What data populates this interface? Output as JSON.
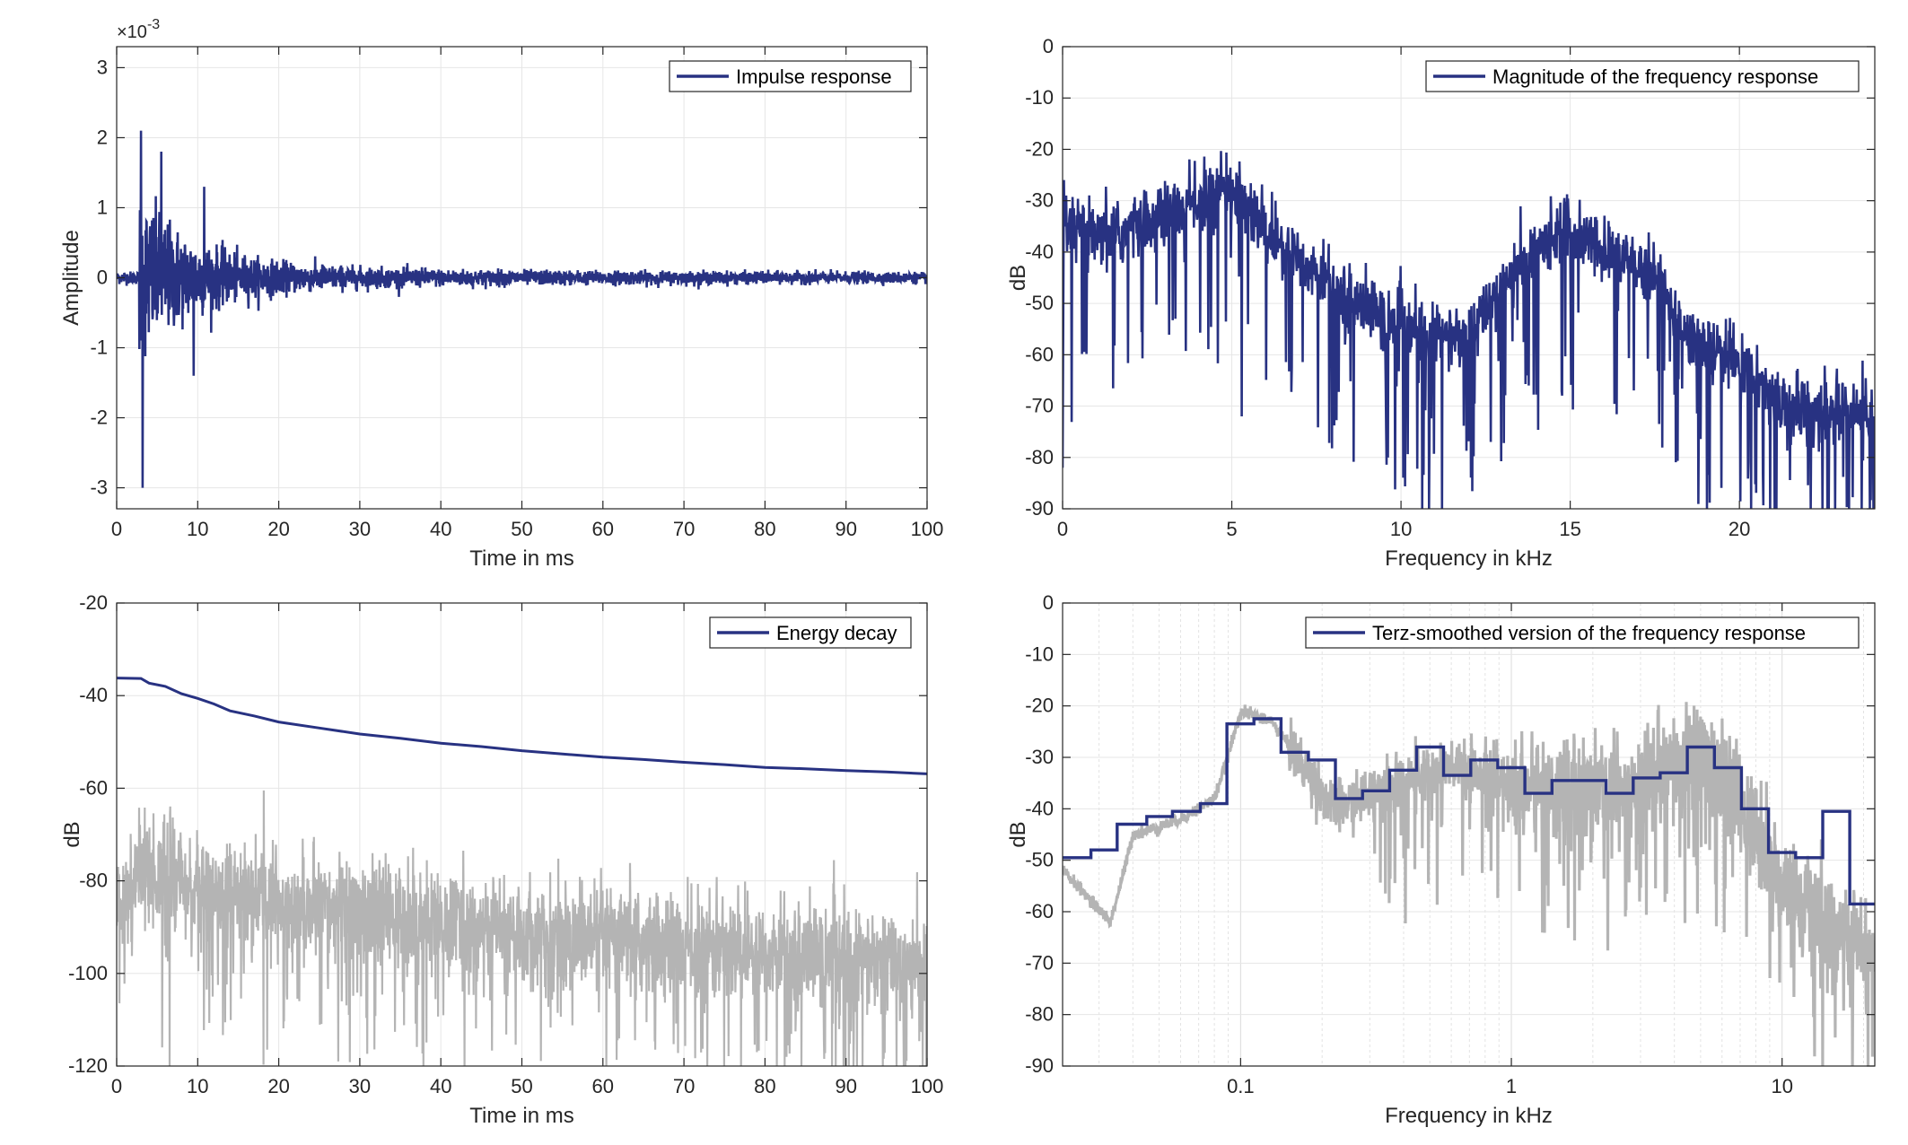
{
  "colors": {
    "primary": "#283282",
    "secondary": "#b4b4b4",
    "grid": "#e6e6e6",
    "axis": "#262626"
  },
  "chart_data": [
    {
      "type": "line",
      "title": "",
      "xlabel": "Time in ms",
      "ylabel": "Amplitude",
      "xlim": [
        0,
        100
      ],
      "ylim": [
        -3.3,
        3.3
      ],
      "y_multiplier_label": "×10",
      "y_multiplier_exp": "-3",
      "xticks": [
        0,
        10,
        20,
        30,
        40,
        50,
        60,
        70,
        80,
        90,
        100
      ],
      "yticks": [
        -3,
        -2,
        -1,
        0,
        1,
        2,
        3
      ],
      "legend": {
        "entries": [
          "Impulse response"
        ],
        "placement": "top-right"
      },
      "series": [
        {
          "name": "Impulse response",
          "signal": "impulse",
          "x_range": [
            0,
            100
          ],
          "peaks": [
            [
              3.0,
              2.1
            ],
            [
              3.2,
              -3.0
            ],
            [
              5.5,
              1.8
            ],
            [
              10.8,
              1.3
            ],
            [
              9.5,
              -1.4
            ]
          ]
        }
      ]
    },
    {
      "type": "line",
      "title": "",
      "xlabel": "Frequency in kHz",
      "ylabel": "dB",
      "xlim": [
        0,
        24
      ],
      "ylim": [
        -90,
        0
      ],
      "xticks": [
        0,
        5,
        10,
        15,
        20
      ],
      "yticks": [
        0,
        -10,
        -20,
        -30,
        -40,
        -50,
        -60,
        -70,
        -80,
        -90
      ],
      "legend": {
        "entries": [
          "Magnitude of the frequency response"
        ],
        "placement": "top-right"
      },
      "series": [
        {
          "name": "Magnitude of the frequency response",
          "signal": "spectrum",
          "x_range": [
            0,
            24
          ],
          "envelope": [
            [
              0,
              -35
            ],
            [
              1,
              -38
            ],
            [
              3,
              -33
            ],
            [
              5,
              -27
            ],
            [
              6,
              -36
            ],
            [
              8,
              -47
            ],
            [
              10,
              -55
            ],
            [
              12,
              -57
            ],
            [
              13,
              -46
            ],
            [
              14.7,
              -35
            ],
            [
              16.5,
              -42
            ],
            [
              17.5,
              -44
            ],
            [
              18.5,
              -57
            ],
            [
              20,
              -62
            ],
            [
              21.5,
              -70
            ],
            [
              24,
              -72
            ]
          ]
        }
      ]
    },
    {
      "type": "line",
      "title": "",
      "xlabel": "Time in ms",
      "ylabel": "dB",
      "xlim": [
        0,
        100
      ],
      "ylim": [
        -120,
        -20
      ],
      "xticks": [
        0,
        10,
        20,
        30,
        40,
        50,
        60,
        70,
        80,
        90,
        100
      ],
      "yticks": [
        -20,
        -40,
        -60,
        -80,
        -100,
        -120
      ],
      "legend": {
        "entries": [
          "Energy decay"
        ],
        "placement": "top-right"
      },
      "series": [
        {
          "name": "Energy decay",
          "points": [
            [
              0,
              -36.2
            ],
            [
              3,
              -36.3
            ],
            [
              4,
              -37.3
            ],
            [
              6,
              -38
            ],
            [
              8,
              -39.6
            ],
            [
              10,
              -40.6
            ],
            [
              12,
              -41.8
            ],
            [
              14,
              -43.3
            ],
            [
              17,
              -44.4
            ],
            [
              20,
              -45.7
            ],
            [
              25,
              -47
            ],
            [
              30,
              -48.3
            ],
            [
              35,
              -49.2
            ],
            [
              40,
              -50.3
            ],
            [
              45,
              -51
            ],
            [
              50,
              -51.9
            ],
            [
              55,
              -52.6
            ],
            [
              60,
              -53.3
            ],
            [
              65,
              -53.8
            ],
            [
              70,
              -54.4
            ],
            [
              75,
              -54.9
            ],
            [
              80,
              -55.5
            ],
            [
              85,
              -55.8
            ],
            [
              90,
              -56.2
            ],
            [
              95,
              -56.5
            ],
            [
              100,
              -56.9
            ]
          ]
        },
        {
          "name": "",
          "signal": "noise-decay",
          "x_range": [
            0,
            100
          ],
          "trend": [
            [
              0,
              -88
            ],
            [
              3,
              -78
            ],
            [
              10,
              -82
            ],
            [
              30,
              -87
            ],
            [
              60,
              -93
            ],
            [
              100,
              -98
            ]
          ]
        }
      ]
    },
    {
      "type": "line",
      "title": "",
      "xlabel": "Frequency in kHz",
      "ylabel": "dB",
      "xscale": "log",
      "xlim": [
        0.022,
        22
      ],
      "ylim": [
        -90,
        0
      ],
      "xticks": [
        0.1,
        1,
        10
      ],
      "xtick_labels": [
        "0.1",
        "1",
        "10"
      ],
      "yticks": [
        0,
        -10,
        -20,
        -30,
        -40,
        -50,
        -60,
        -70,
        -80,
        -90
      ],
      "legend": {
        "entries": [
          "Terz-smoothed version of the frequency response"
        ],
        "placement": "top-right"
      },
      "series": [
        {
          "name": "Terz-smoothed version of the frequency response",
          "step_edges": [
            0.022,
            0.028,
            0.035,
            0.045,
            0.056,
            0.071,
            0.089,
            0.112,
            0.141,
            0.178,
            0.224,
            0.282,
            0.355,
            0.447,
            0.562,
            0.708,
            0.891,
            1.122,
            1.413,
            1.778,
            2.239,
            2.818,
            3.548,
            4.467,
            5.623,
            7.079,
            8.913,
            11.22,
            14.13,
            17.78,
            22
          ],
          "step_values": [
            -49.5,
            -48,
            -43,
            -41.5,
            -40.5,
            -39,
            -23.5,
            -22.5,
            -29,
            -30.5,
            -38,
            -36.5,
            -32.5,
            -28,
            -33.5,
            -30.5,
            -32,
            -37,
            -34.5,
            -34.5,
            -37,
            -34,
            -33,
            -28,
            -32,
            -40,
            -48.5,
            -49.5,
            -40.5,
            -58.5
          ]
        },
        {
          "name": "",
          "signal": "fine-spectrum",
          "x_range": [
            0.022,
            22
          ],
          "trend": [
            [
              0.022,
              -52
            ],
            [
              0.028,
              -58
            ],
            [
              0.033,
              -62
            ],
            [
              0.04,
              -45
            ],
            [
              0.06,
              -42
            ],
            [
              0.08,
              -38
            ],
            [
              0.1,
              -21
            ],
            [
              0.13,
              -23
            ],
            [
              0.17,
              -32
            ],
            [
              0.22,
              -40
            ],
            [
              0.3,
              -37
            ],
            [
              0.5,
              -33
            ],
            [
              0.7,
              -32
            ],
            [
              1,
              -36
            ],
            [
              2,
              -37
            ],
            [
              3,
              -35
            ],
            [
              5,
              -29
            ],
            [
              7,
              -40
            ],
            [
              10,
              -55
            ],
            [
              15,
              -62
            ],
            [
              22,
              -70
            ]
          ]
        }
      ]
    }
  ]
}
